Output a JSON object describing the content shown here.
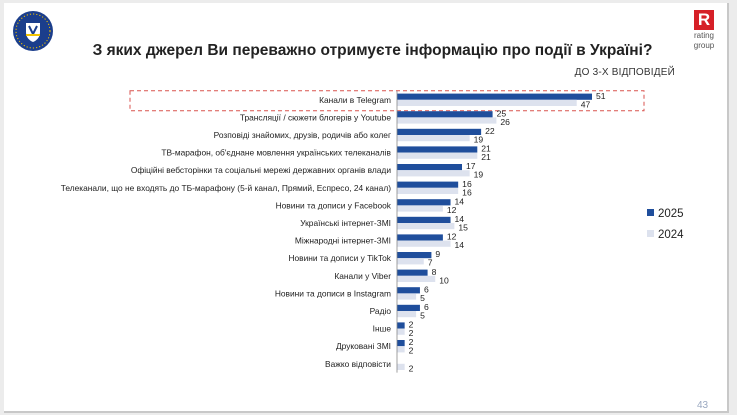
{
  "title": "З яких джерел Ви переважно отримуєте інформацію про події в Україні?",
  "subtitle": "ДО 3-Х ВІДПОВІДЕЙ",
  "logo_right": {
    "letter": "R",
    "line1": "rating",
    "line2": "group"
  },
  "page_number": "43",
  "colors": {
    "series_2025": "#1f4e9c",
    "series_2024": "#dde2ee",
    "highlight_border": "#d9534f"
  },
  "chart_data": {
    "type": "bar",
    "orientation": "horizontal",
    "title": "З яких джерел Ви переважно отримуєте інформацію про події в Україні?",
    "highlighted_category": "Канали в Telegram",
    "categories": [
      "Канали в Telegram",
      "Трансляції / сюжети блогерів у Youtube",
      "Розповіді знайомих, друзів, родичів або колег",
      "ТВ-марафон, об'єднане мовлення українських телеканалів",
      "Офіційні вебсторінки та соціальні мережі державних органів влади",
      "Телеканали, що не входять до ТБ-марафону (5-й канал, Прямий, Еспресо, 24 канал)",
      "Новини та дописи у Facebook",
      "Українські інтернет-ЗМІ",
      "Міжнародні інтернет-ЗМІ",
      "Новини та дописи у TikTok",
      "Канали у Viber",
      "Новини та дописи в Instagram",
      "Радіо",
      "Інше",
      "Друковані ЗМІ",
      "Важко відповісти"
    ],
    "series": [
      {
        "name": "2025",
        "values": [
          51,
          25,
          22,
          21,
          17,
          16,
          14,
          14,
          12,
          9,
          8,
          6,
          6,
          2,
          2,
          null
        ]
      },
      {
        "name": "2024",
        "values": [
          47,
          26,
          19,
          21,
          19,
          16,
          12,
          15,
          14,
          7,
          10,
          5,
          5,
          2,
          2,
          2
        ]
      }
    ],
    "xlim": [
      0,
      51
    ],
    "legend_position": "right"
  }
}
